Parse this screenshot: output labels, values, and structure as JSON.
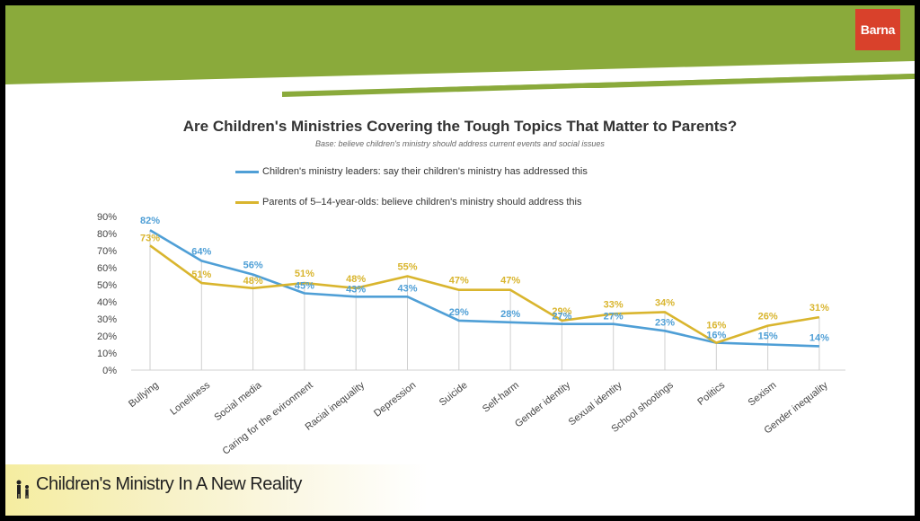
{
  "brand": {
    "logo_text": "Barna",
    "logo_color": "#d9412b",
    "band_color": "#8aaa3b"
  },
  "chart_data": {
    "type": "line",
    "title": "Are Children's Ministries Covering the Tough Topics That Matter to Parents?",
    "subtitle": "Base: believe children's ministry should address current events and social issues",
    "categories": [
      "Bullying",
      "Loneliness",
      "Social media",
      "Caring for the evironment",
      "Racial inequality",
      "Depression",
      "Suicide",
      "Self-harm",
      "Gender identity",
      "Sexual identity",
      "School shootings",
      "Politics",
      "Sexism",
      "Gender inequality"
    ],
    "series": [
      {
        "name": "Children's ministry leaders: say their children's ministry has addressed this",
        "color": "#4f9fd6",
        "values": [
          82,
          64,
          56,
          45,
          43,
          43,
          29,
          28,
          27,
          27,
          23,
          16,
          15,
          14
        ]
      },
      {
        "name": "Parents of 5–14-year-olds: believe children's ministry should address this",
        "color": "#d9b52e",
        "values": [
          73,
          51,
          48,
          51,
          48,
          55,
          47,
          47,
          29,
          33,
          34,
          16,
          26,
          31
        ]
      }
    ],
    "value_labels": {
      "leaders": [
        "82%",
        "64%",
        "56%",
        "45%",
        "43%",
        "43%",
        "29%",
        "28%",
        "27%",
        "27%",
        "23%",
        "16%",
        "15%",
        "14%"
      ],
      "parents": [
        "73%",
        "51%",
        "48%",
        "51%",
        "48%",
        "55%",
        "47%",
        "47%",
        "29%",
        "33%",
        "34%",
        "16%",
        "26%",
        "31%"
      ]
    },
    "ylim": [
      0,
      90
    ],
    "yticks": [
      "0%",
      "10%",
      "20%",
      "30%",
      "40%",
      "50%",
      "60%",
      "70%",
      "80%",
      "90%"
    ],
    "legend_position": "top-center",
    "grid": false
  },
  "footer": {
    "text": "Children's Ministry In A New Reality"
  }
}
